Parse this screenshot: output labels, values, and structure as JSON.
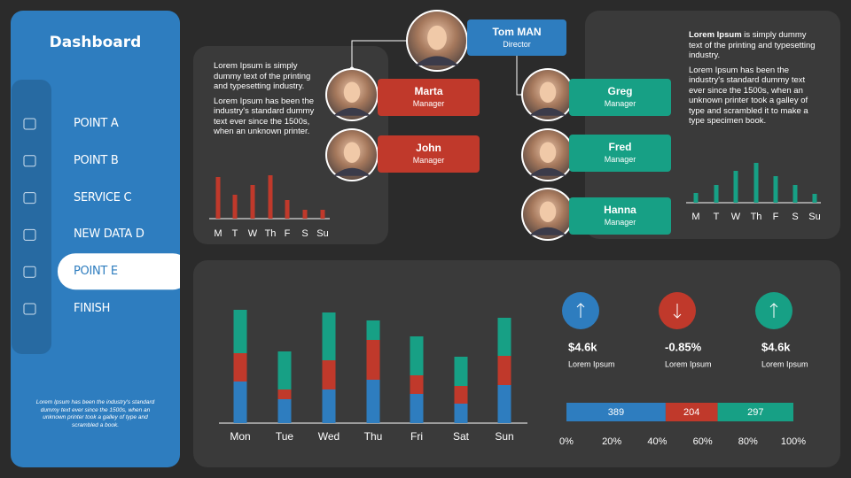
{
  "sidebar": {
    "title": "Dashboard",
    "menu": [
      "POINT A",
      "POINT B",
      "SERVICE C",
      "NEW DATA D",
      "POINT E",
      "FINISH"
    ],
    "active": 4,
    "footer": "Lorem Ipsum has been the industry's standard dummy text ever since the 1500s, when an unknown printer took a galley of type and scrambled  a book."
  },
  "left_panel": {
    "paragraphs": [
      "Lorem Ipsum is simply dummy text of the printing and typesetting industry.",
      "Lorem Ipsum has been the industry's standard dummy text ever since the 1500s, when an unknown printer."
    ],
    "chart": {
      "type": "bar",
      "categories": [
        "M",
        "T",
        "W",
        "Th",
        "F",
        "S",
        "Su"
      ],
      "values": [
        47,
        27,
        38,
        49,
        21,
        10,
        10
      ],
      "color": "#c0392b"
    }
  },
  "right_panel": {
    "lead": "Lorem Ipsum",
    "paragraph1": "is simply dummy text of the printing and typesetting industry.",
    "paragraph2": "Lorem Ipsum has been the industry's standard dummy text ever since the 1500s, when an unknown printer took a galley of type and scrambled it to make a type specimen book.",
    "chart": {
      "type": "bar",
      "categories": [
        "M",
        "T",
        "W",
        "Th",
        "F",
        "S",
        "Su"
      ],
      "values": [
        11,
        20,
        36,
        45,
        30,
        20,
        10
      ],
      "color": "#17a085"
    }
  },
  "org": {
    "director": {
      "name": "Tom MAN",
      "role": "Director",
      "color": "#2e7dbf"
    },
    "managers": [
      {
        "name": "Marta",
        "role": "Manager",
        "color": "#c0392b"
      },
      {
        "name": "John",
        "role": "Manager",
        "color": "#c0392b"
      },
      {
        "name": "Greg",
        "role": "Manager",
        "color": "#17a085"
      },
      {
        "name": "Fred",
        "role": "Manager",
        "color": "#17a085"
      },
      {
        "name": "Hanna",
        "role": "Manager",
        "color": "#17a085"
      }
    ]
  },
  "stacked_chart": {
    "type": "bar",
    "stacked": true,
    "categories": [
      "Mon",
      "Tue",
      "Wed",
      "Thu",
      "Fri",
      "Sat",
      "Sun"
    ],
    "series": [
      {
        "color": "#2e7dbf",
        "values": [
          47,
          27,
          38,
          49,
          33,
          22,
          43
        ]
      },
      {
        "color": "#c0392b",
        "values": [
          32,
          11,
          33,
          45,
          21,
          20,
          33
        ]
      },
      {
        "color": "#17a085",
        "values": [
          49,
          43,
          54,
          22,
          44,
          33,
          43
        ]
      }
    ]
  },
  "kpis": [
    {
      "value": "$4.6k",
      "label": "Lorem Ipsum",
      "color": "#2e7dbf"
    },
    {
      "value": "-0.85%",
      "label": "Lorem Ipsum",
      "color": "#c0392b"
    },
    {
      "value": "$4.6k",
      "label": "Lorem Ipsum",
      "color": "#17a085"
    }
  ],
  "share_bar": {
    "type": "bar",
    "stacked": true,
    "values": [
      389,
      204,
      297
    ],
    "colors": [
      "#2e7dbf",
      "#c0392b",
      "#17a085"
    ],
    "xlim": [
      0,
      100
    ],
    "xticks": [
      {
        "value": 0,
        "label": "0%"
      },
      {
        "value": 20,
        "label": "20%"
      },
      {
        "value": 40,
        "label": "40%"
      },
      {
        "value": 60,
        "label": "60%"
      },
      {
        "value": 80,
        "label": "80%"
      },
      {
        "value": 100,
        "label": "100%"
      }
    ]
  }
}
